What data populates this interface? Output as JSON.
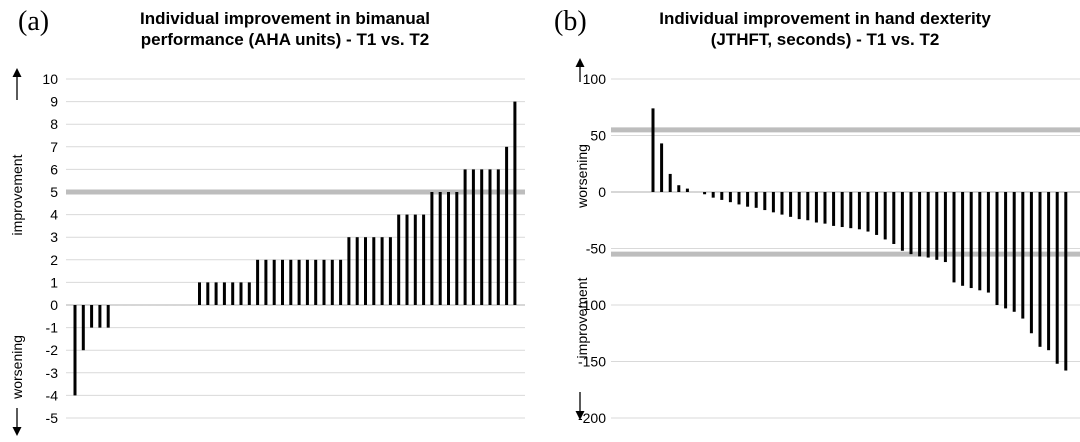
{
  "panels": [
    {
      "letter": "(a)",
      "title_lines": [
        "Individual improvement in bimanual",
        "performance (AHA units) - T1 vs. T2"
      ],
      "upper_label": "improvement",
      "lower_label": "worsening"
    },
    {
      "letter": "(b)",
      "title_lines": [
        "Individual improvement in hand dexterity",
        "(JTHFT, seconds) - T1 vs. T2"
      ],
      "upper_label": "worsening",
      "lower_label": "improvement"
    }
  ],
  "chart_data": [
    {
      "type": "bar",
      "title": "Individual improvement in bimanual performance (AHA units) - T1 vs. T2",
      "ylim": [
        -5,
        10
      ],
      "yticks": [
        10,
        9,
        8,
        7,
        6,
        5,
        4,
        3,
        2,
        1,
        0,
        -1,
        -2,
        -3,
        -4,
        -5
      ],
      "grid": true,
      "reference_lines": [
        5
      ],
      "values": [
        -4,
        -2,
        -1,
        -1,
        -1,
        0,
        0,
        0,
        0,
        0,
        0,
        0,
        0,
        0,
        0,
        1,
        1,
        1,
        1,
        1,
        1,
        1,
        2,
        2,
        2,
        2,
        2,
        2,
        2,
        2,
        2,
        2,
        2,
        3,
        3,
        3,
        3,
        3,
        3,
        4,
        4,
        4,
        4,
        5,
        5,
        5,
        5,
        6,
        6,
        6,
        6,
        6,
        7,
        9
      ]
    },
    {
      "type": "bar",
      "title": "Individual improvement in hand dexterity (JTHFT, seconds) - T1 vs. T2",
      "ylim": [
        -200,
        100
      ],
      "yticks": [
        100,
        50,
        0,
        -50,
        -100,
        -150,
        -200
      ],
      "grid": true,
      "reference_lines": [
        55,
        -55
      ],
      "values": [
        74,
        43,
        16,
        6,
        3,
        0,
        -2,
        -5,
        -7,
        -9,
        -11,
        -13,
        -14,
        -16,
        -18,
        -20,
        -22,
        -24,
        -25,
        -27,
        -28,
        -30,
        -31,
        -32,
        -33,
        -35,
        -38,
        -42,
        -46,
        -52,
        -55,
        -57,
        -58,
        -60,
        -62,
        -80,
        -83,
        -85,
        -87,
        -89,
        -100,
        -103,
        -106,
        -112,
        -125,
        -137,
        -140,
        -152,
        -158
      ]
    }
  ]
}
